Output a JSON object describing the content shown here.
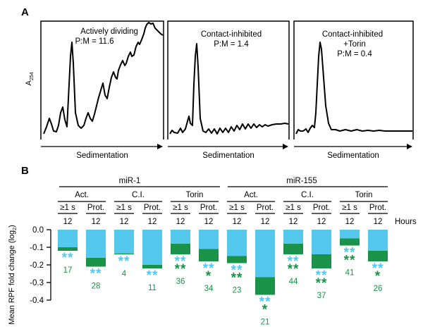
{
  "panel_a": {
    "label": "A",
    "ylabel_main": "A",
    "ylabel_sub": "254",
    "xlabel": "Sedimentation",
    "panels": [
      {
        "title": "Actively dividing",
        "ratio": "P:M = 11.6"
      },
      {
        "title": "Contact-inhibited",
        "ratio": "P:M = 1.4"
      },
      {
        "title": "Contact-inhibited",
        "title2": "+Torin",
        "ratio": "P:M = 0.4"
      }
    ]
  },
  "panel_b": {
    "label": "B",
    "ylabel": "Mean RPF fold change (log",
    "ylabel_sub": "2",
    "ylabel_end": ")",
    "hours_label": "Hours",
    "groups": [
      "miR-1",
      "miR-155"
    ],
    "conditions": [
      "Act.",
      "C.I.",
      "Torin",
      "Act.",
      "C.I.",
      "Torin"
    ],
    "subsets": [
      "≥1 s",
      "Prot.",
      "≥1 s",
      "Prot.",
      "≥1 s",
      "Prot.",
      "≥1 s",
      "Prot.",
      "≥1 s",
      "Prot.",
      "≥1 s",
      "Prot."
    ],
    "hours": [
      "12",
      "12",
      "12",
      "12",
      "12",
      "12",
      "12",
      "12",
      "12",
      "12",
      "12",
      "12"
    ]
  },
  "chart_data": {
    "type": "bar",
    "ylabel": "Mean RPF fold change (log2)",
    "ylim": [
      -0.4,
      0.0
    ],
    "yticks": [
      "0.0",
      "-0.1",
      "-0.2",
      "-0.3",
      "-0.4"
    ],
    "colors": {
      "light": "#55c8ee",
      "dark": "#1a9247",
      "text": "#1a9247"
    },
    "bars": [
      {
        "group": "miR-1",
        "condition": "Act.",
        "subset": "≥1 s",
        "total": -0.12,
        "dark_portion": -0.02,
        "light_stars": "**",
        "dark_stars": "",
        "n": "17"
      },
      {
        "group": "miR-1",
        "condition": "Act.",
        "subset": "Prot.",
        "total": -0.21,
        "dark_portion": -0.05,
        "light_stars": "**",
        "dark_stars": "",
        "n": "28"
      },
      {
        "group": "miR-1",
        "condition": "C.I.",
        "subset": "≥1 s",
        "total": -0.14,
        "dark_portion": -0.005,
        "light_stars": "**",
        "dark_stars": "",
        "n": "4"
      },
      {
        "group": "miR-1",
        "condition": "C.I.",
        "subset": "Prot.",
        "total": -0.22,
        "dark_portion": -0.02,
        "light_stars": "**",
        "dark_stars": "",
        "n": "11"
      },
      {
        "group": "miR-1",
        "condition": "Torin",
        "subset": "≥1 s",
        "total": -0.14,
        "dark_portion": -0.06,
        "light_stars": "**",
        "dark_stars": "**",
        "n": "36"
      },
      {
        "group": "miR-1",
        "condition": "Torin",
        "subset": "Prot.",
        "total": -0.18,
        "dark_portion": -0.07,
        "light_stars": "**",
        "dark_stars": "*",
        "n": "34"
      },
      {
        "group": "miR-155",
        "condition": "Act.",
        "subset": "≥1 s",
        "total": -0.19,
        "dark_portion": -0.04,
        "light_stars": "**",
        "dark_stars": "**",
        "n": "23"
      },
      {
        "group": "miR-155",
        "condition": "Act.",
        "subset": "Prot.",
        "total": -0.37,
        "dark_portion": -0.1,
        "light_stars": "**",
        "dark_stars": "*",
        "n": "21"
      },
      {
        "group": "miR-155",
        "condition": "C.I.",
        "subset": "≥1 s",
        "total": -0.14,
        "dark_portion": -0.06,
        "light_stars": "**",
        "dark_stars": "**",
        "n": "44"
      },
      {
        "group": "miR-155",
        "condition": "C.I.",
        "subset": "Prot.",
        "total": -0.22,
        "dark_portion": -0.08,
        "light_stars": "**",
        "dark_stars": "**",
        "n": "37"
      },
      {
        "group": "miR-155",
        "condition": "Torin",
        "subset": "≥1 s",
        "total": -0.09,
        "dark_portion": -0.04,
        "light_stars": "**",
        "dark_stars": "**",
        "n": "41"
      },
      {
        "group": "miR-155",
        "condition": "Torin",
        "subset": "Prot.",
        "total": -0.18,
        "dark_portion": -0.06,
        "light_stars": "**",
        "dark_stars": "*",
        "n": "26"
      }
    ]
  }
}
